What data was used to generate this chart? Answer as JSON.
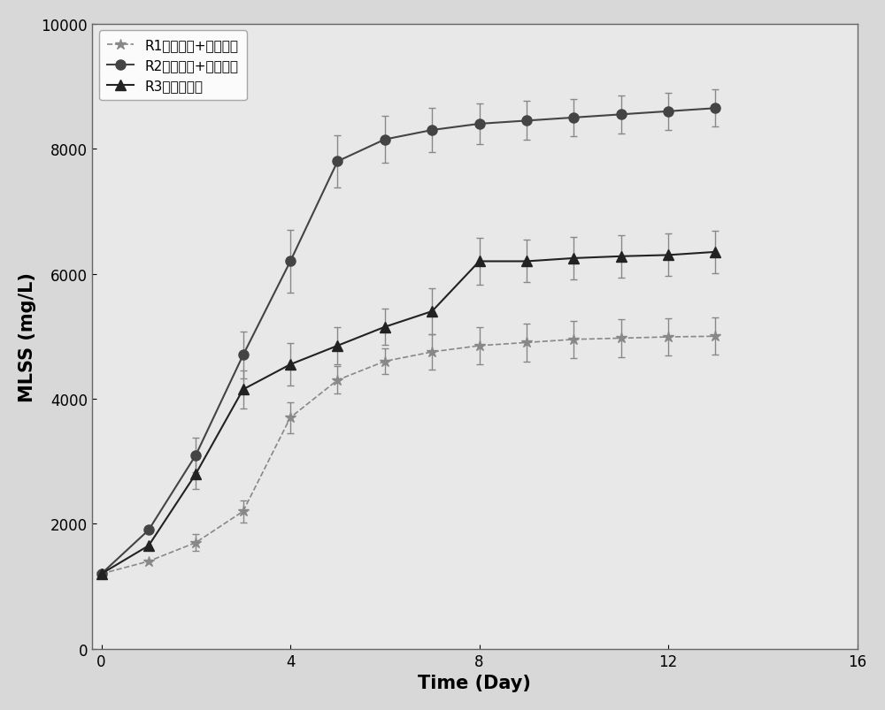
{
  "title": "",
  "xlabel": "Time (Day)",
  "ylabel": "MLSS (mg/L)",
  "xlim": [
    -0.2,
    16
  ],
  "ylim": [
    0,
    10000
  ],
  "xticks": [
    0,
    4,
    8,
    12,
    16
  ],
  "yticks": [
    0,
    2000,
    4000,
    6000,
    8000,
    10000
  ],
  "R1": {
    "label": "R1（衆葡糖+青鱼素）",
    "x": [
      0,
      1,
      2,
      3,
      4,
      5,
      6,
      7,
      8,
      9,
      10,
      11,
      12,
      13
    ],
    "y": [
      1200,
      1400,
      1700,
      2200,
      3700,
      4300,
      4600,
      4750,
      4850,
      4900,
      4950,
      4970,
      4990,
      5000
    ],
    "yerr": [
      0,
      120,
      130,
      180,
      250,
      220,
      200,
      280,
      300,
      300,
      300,
      300,
      300,
      300
    ],
    "color": "#888888",
    "marker": "*",
    "markersize": 9,
    "linestyle": "--",
    "linewidth": 1.2
  },
  "R2": {
    "label": "R2（葡萄糖+青鱼素）",
    "x": [
      0,
      1,
      2,
      3,
      4,
      5,
      6,
      7,
      8,
      9,
      10,
      11,
      12,
      13
    ],
    "y": [
      1200,
      1900,
      3100,
      4700,
      6200,
      7800,
      8150,
      8300,
      8400,
      8450,
      8500,
      8550,
      8600,
      8650
    ],
    "yerr": [
      0,
      180,
      280,
      380,
      500,
      420,
      370,
      360,
      320,
      310,
      300,
      300,
      300,
      300
    ],
    "color": "#444444",
    "marker": "o",
    "markersize": 8,
    "linestyle": "-",
    "linewidth": 1.5
  },
  "R3": {
    "label": "R3（青鱼素）",
    "x": [
      0,
      1,
      2,
      3,
      4,
      5,
      6,
      7,
      8,
      9,
      10,
      11,
      12,
      13
    ],
    "y": [
      1200,
      1650,
      2800,
      4150,
      4550,
      4850,
      5150,
      5400,
      6200,
      6200,
      6250,
      6280,
      6300,
      6350
    ],
    "yerr": [
      0,
      130,
      240,
      300,
      340,
      300,
      290,
      370,
      380,
      340,
      340,
      340,
      340,
      340
    ],
    "color": "#222222",
    "marker": "^",
    "markersize": 8,
    "linestyle": "-",
    "linewidth": 1.5
  },
  "bg_color": "#d8d8d8",
  "plot_bg": "#e8e8e8",
  "figure_width": 10.0,
  "figure_height": 8.04
}
